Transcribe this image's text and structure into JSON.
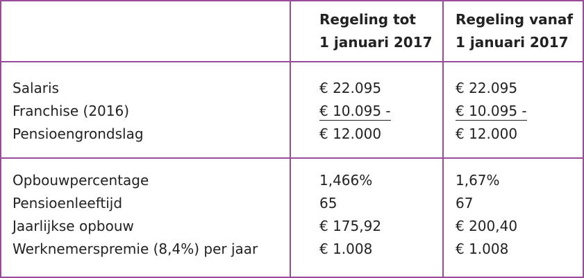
{
  "header": {
    "col1": [
      "Regeling tot",
      "1 januari 2017"
    ],
    "col2": [
      "Regeling vanaf",
      "1 januari 2017"
    ]
  },
  "section1": {
    "labels": [
      "Salaris",
      "Franchise (2016)",
      "Pensioengrondslag"
    ],
    "col1": [
      "€ 22.095",
      "€ 10.095 -",
      "€ 12.000"
    ],
    "col2": [
      "€ 22.095",
      "€ 10.095 -",
      "€ 12.000"
    ]
  },
  "section2": {
    "labels": [
      "Opbouwpercentage",
      "Pensioenleeftijd",
      "Jaarlijkse opbouw",
      "Werknemerspremie (8,4%) per jaar"
    ],
    "col1": [
      "1,466%",
      "65",
      "€ 175,92",
      "€ 1.008"
    ],
    "col2": [
      "1,67%",
      "67",
      "€ 200,40",
      "€ 1.008"
    ]
  },
  "colors": {
    "border": "#9a4a9a",
    "text": "#222222"
  }
}
